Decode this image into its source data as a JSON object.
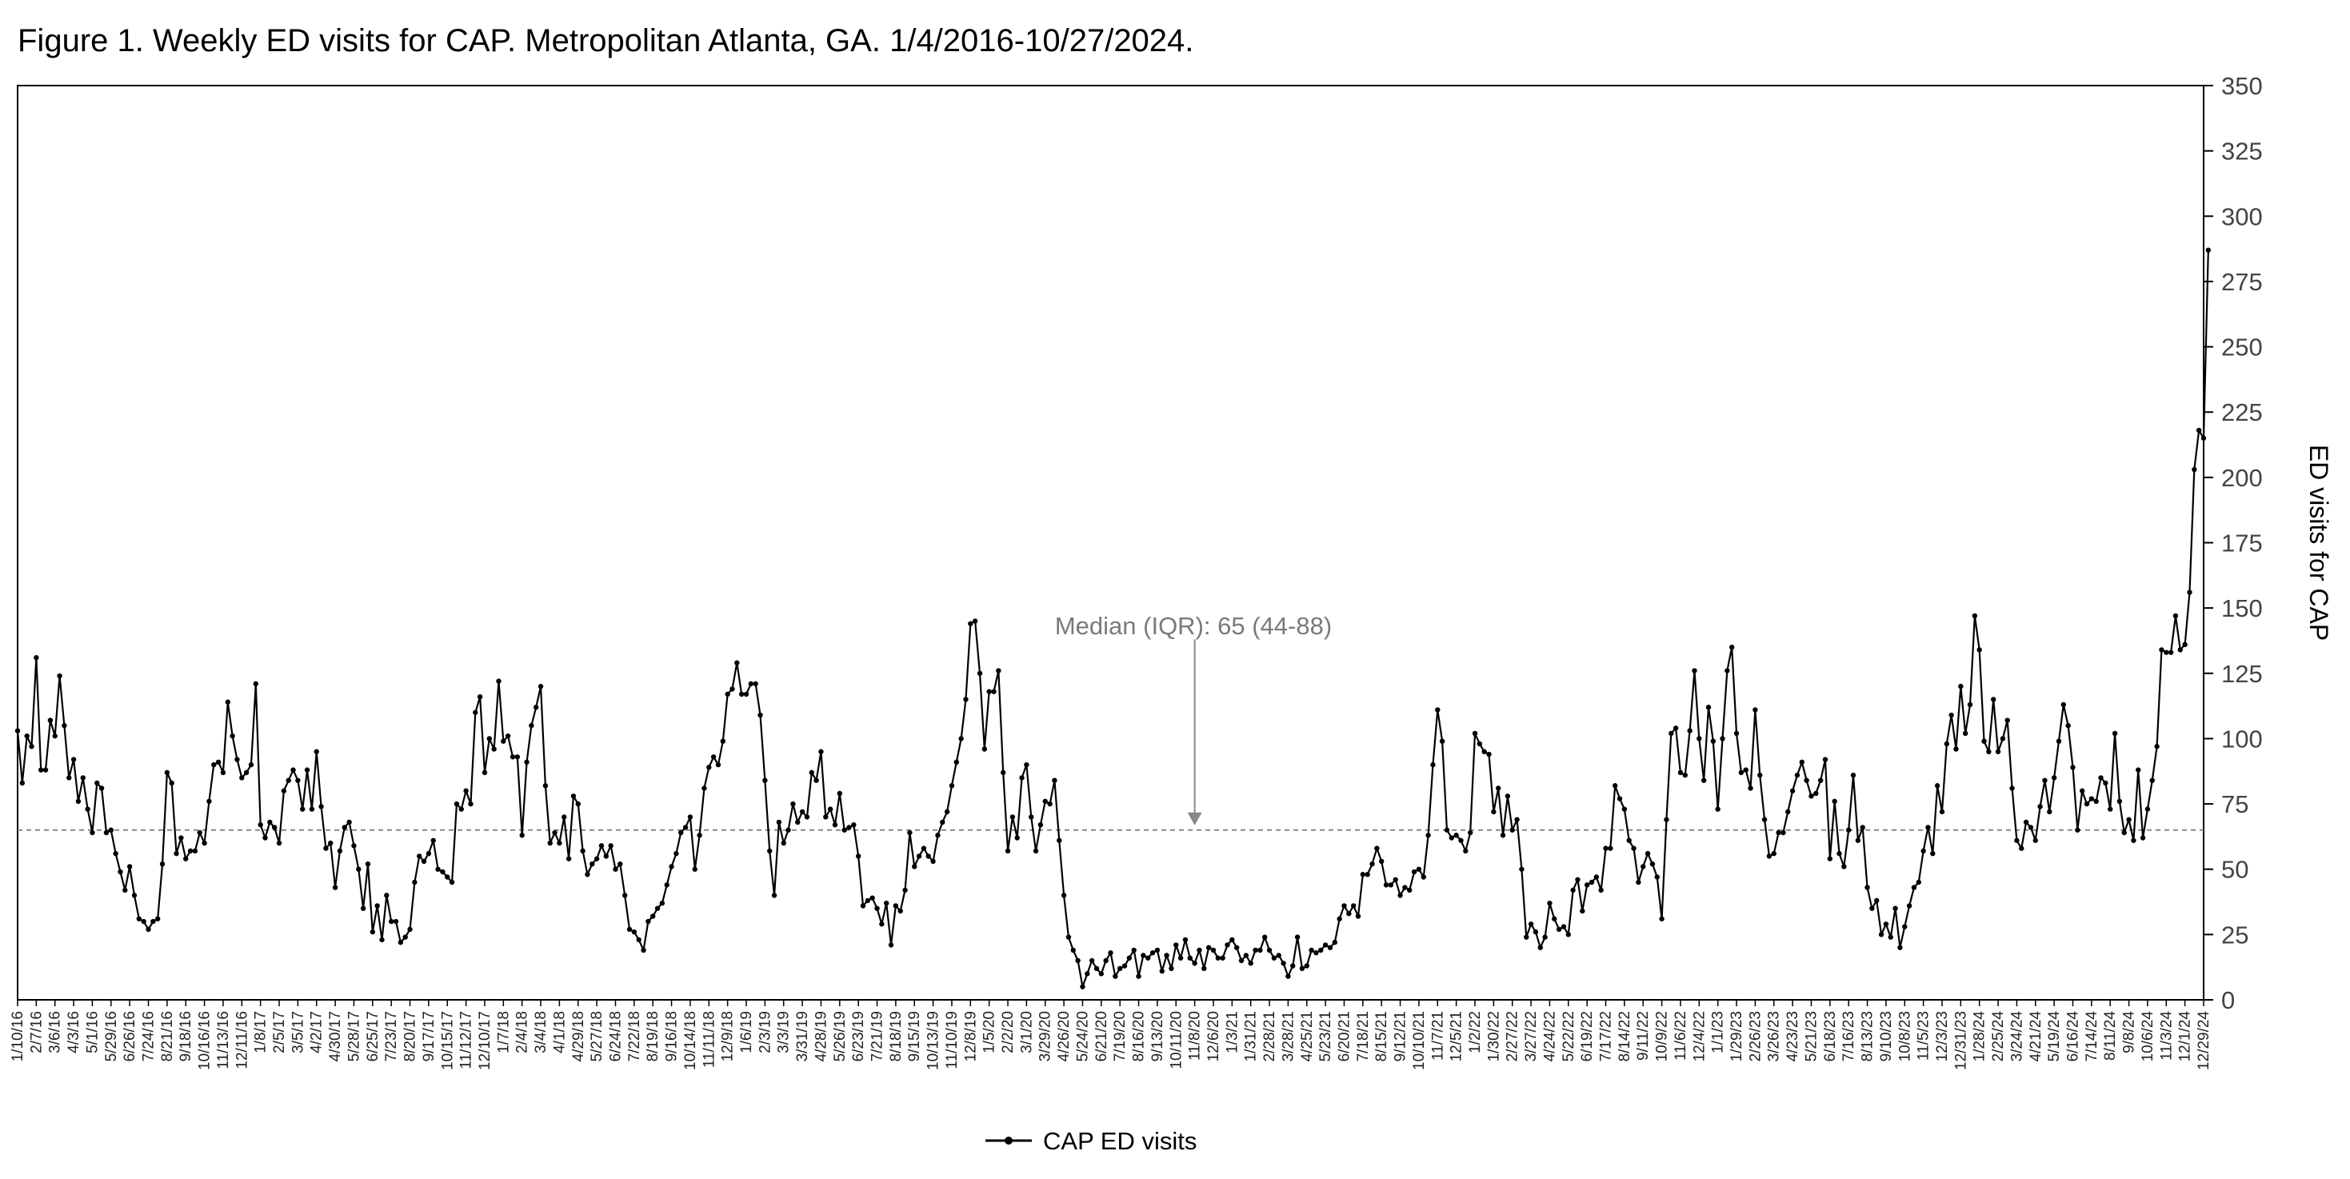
{
  "chart_data": {
    "type": "line",
    "title": "Figure 1. Weekly ED visits for CAP. Metropolitan Atlanta, GA. 1/4/2016-10/27/2024.",
    "xlabel": "",
    "ylabel": "ED visits for CAP",
    "ylim": [
      0,
      350
    ],
    "yticks": [
      0,
      25,
      50,
      75,
      100,
      125,
      150,
      175,
      200,
      225,
      250,
      275,
      300,
      325,
      350
    ],
    "x_start": "1/10/16",
    "x_step_days": 7,
    "xtick_every_weeks": 4,
    "xtick_labels": [
      "1/10/16",
      "2/7/16",
      "3/6/16",
      "4/3/16",
      "5/1/16",
      "5/29/16",
      "6/26/16",
      "7/24/16",
      "8/21/16",
      "9/18/16",
      "10/16/16",
      "11/13/16",
      "12/11/16",
      "1/8/17",
      "2/5/17",
      "3/5/17",
      "4/2/17",
      "4/30/17",
      "5/28/17",
      "6/25/17",
      "7/23/17",
      "8/20/17",
      "9/17/17",
      "10/15/17",
      "11/12/17",
      "12/10/17",
      "1/7/18",
      "2/4/18",
      "3/4/18",
      "4/1/18",
      "4/29/18",
      "5/27/18",
      "6/24/18",
      "7/22/18",
      "8/19/18",
      "9/16/18",
      "10/14/18",
      "11/11/18",
      "12/9/18",
      "1/6/19",
      "2/3/19",
      "3/3/19",
      "3/31/19",
      "4/28/19",
      "5/26/19",
      "6/23/19",
      "7/21/19",
      "8/18/19",
      "9/15/19",
      "10/13/19",
      "11/10/19",
      "12/8/19",
      "1/5/20",
      "2/2/20",
      "3/1/20",
      "3/29/20",
      "4/26/20",
      "5/24/20",
      "6/21/20",
      "7/19/20",
      "8/16/20",
      "9/13/20",
      "10/11/20",
      "11/8/20",
      "12/6/20",
      "1/3/21",
      "1/31/21",
      "2/28/21",
      "3/28/21",
      "4/25/21",
      "5/23/21",
      "6/20/21",
      "7/18/21",
      "8/15/21",
      "9/12/21",
      "10/10/21",
      "11/7/21",
      "12/5/21",
      "1/2/22",
      "1/30/22",
      "2/27/22",
      "3/27/22",
      "4/24/22",
      "5/22/22",
      "6/19/22",
      "7/17/22",
      "8/14/22",
      "9/11/22",
      "10/9/22",
      "11/6/22",
      "12/4/22",
      "1/1/23",
      "1/29/23",
      "2/26/23",
      "3/26/23",
      "4/23/23",
      "5/21/23",
      "6/18/23",
      "7/16/23",
      "8/13/23",
      "9/10/23",
      "10/8/23",
      "11/5/23",
      "12/3/23",
      "12/31/23",
      "1/28/24",
      "2/25/24",
      "3/24/24",
      "4/21/24",
      "5/19/24",
      "6/16/24",
      "7/14/24",
      "8/11/24",
      "9/8/24",
      "10/6/24",
      "11/3/24",
      "12/1/24",
      "12/29/24"
    ],
    "grid": false,
    "legend_position": "bottom-center",
    "series": [
      {
        "name": "CAP ED visits",
        "color": "#000000",
        "values": [
          103,
          83,
          101,
          97,
          131,
          88,
          88,
          107,
          101,
          124,
          105,
          85,
          92,
          76,
          85,
          73,
          64,
          83,
          81,
          64,
          65,
          56,
          49,
          42,
          51,
          40,
          31,
          30,
          27,
          30,
          31,
          52,
          87,
          83,
          56,
          62,
          54,
          57,
          57,
          64,
          60,
          76,
          90,
          91,
          87,
          114,
          101,
          92,
          85,
          87,
          90,
          121,
          67,
          62,
          68,
          66,
          60,
          80,
          84,
          88,
          84,
          73,
          88,
          73,
          95,
          74,
          58,
          60,
          43,
          57,
          66,
          68,
          59,
          50,
          35,
          52,
          26,
          36,
          23,
          40,
          30,
          30,
          22,
          24,
          27,
          45,
          55,
          53,
          56,
          61,
          50,
          49,
          47,
          45,
          75,
          73,
          80,
          75,
          110,
          116,
          87,
          100,
          96,
          122,
          99,
          101,
          93,
          93,
          63,
          91,
          105,
          112,
          120,
          82,
          60,
          64,
          60,
          70,
          54,
          78,
          75,
          57,
          48,
          52,
          54,
          59,
          55,
          59,
          50,
          52,
          40,
          27,
          26,
          23,
          19,
          30,
          32,
          35,
          37,
          44,
          51,
          56,
          64,
          66,
          70,
          50,
          63,
          81,
          89,
          93,
          90,
          99,
          117,
          119,
          129,
          117,
          117,
          121,
          121,
          109,
          84,
          57,
          40,
          68,
          60,
          65,
          75,
          68,
          72,
          70,
          87,
          84,
          95,
          70,
          73,
          67,
          79,
          65,
          66,
          67,
          55,
          36,
          38,
          39,
          35,
          29,
          37,
          21,
          36,
          34,
          42,
          64,
          51,
          55,
          58,
          55,
          53,
          63,
          68,
          72,
          82,
          91,
          100,
          115,
          144,
          145,
          125,
          96,
          118,
          118,
          126,
          87,
          57,
          70,
          62,
          85,
          90,
          70,
          57,
          67,
          76,
          75,
          84,
          61,
          40,
          24,
          19,
          15,
          5,
          10,
          15,
          12,
          10,
          15,
          18,
          9,
          12,
          13,
          16,
          19,
          9,
          17,
          16,
          18,
          19,
          11,
          17,
          12,
          21,
          16,
          23,
          16,
          14,
          19,
          12,
          20,
          19,
          16,
          16,
          21,
          23,
          20,
          15,
          17,
          14,
          19,
          19,
          24,
          19,
          16,
          17,
          14,
          9,
          13,
          24,
          12,
          13,
          19,
          18,
          19,
          21,
          20,
          22,
          31,
          36,
          33,
          36,
          32,
          48,
          48,
          52,
          58,
          53,
          44,
          44,
          46,
          40,
          43,
          42,
          49,
          50,
          47,
          63,
          90,
          111,
          99,
          65,
          62,
          63,
          61,
          57,
          64,
          102,
          98,
          95,
          94,
          72,
          81,
          63,
          78,
          65,
          69,
          50,
          24,
          29,
          26,
          20,
          24,
          37,
          31,
          27,
          28,
          25,
          42,
          46,
          34,
          44,
          45,
          47,
          42,
          58,
          58,
          82,
          77,
          73,
          61,
          58,
          45,
          51,
          56,
          52,
          47,
          31,
          69,
          102,
          104,
          87,
          86,
          103,
          126,
          100,
          84,
          112,
          99,
          73,
          100,
          126,
          135,
          102,
          87,
          88,
          81,
          111,
          86,
          69,
          55,
          56,
          64,
          64,
          72,
          80,
          86,
          91,
          84,
          78,
          79,
          84,
          92,
          54,
          76,
          56,
          51,
          65,
          86,
          61,
          66,
          43,
          35,
          38,
          25,
          29,
          24,
          35,
          20,
          28,
          36,
          43,
          45,
          57,
          66,
          56,
          82,
          72,
          98,
          109,
          96,
          120,
          102,
          113,
          147,
          134,
          99,
          95,
          115,
          95,
          100,
          107,
          81,
          61,
          58,
          68,
          66,
          61,
          74,
          84,
          72,
          85,
          99,
          113,
          105,
          89,
          65,
          80,
          75,
          77,
          76,
          85,
          83,
          73,
          102,
          76,
          64,
          69,
          61,
          88,
          62,
          73,
          84,
          97,
          134,
          133,
          133,
          147,
          134,
          136,
          156,
          203,
          218,
          215,
          287
        ]
      }
    ],
    "annotations": [
      {
        "text": "Median (IQR): 65 (44-88)",
        "reference_line_y": 65
      }
    ]
  }
}
